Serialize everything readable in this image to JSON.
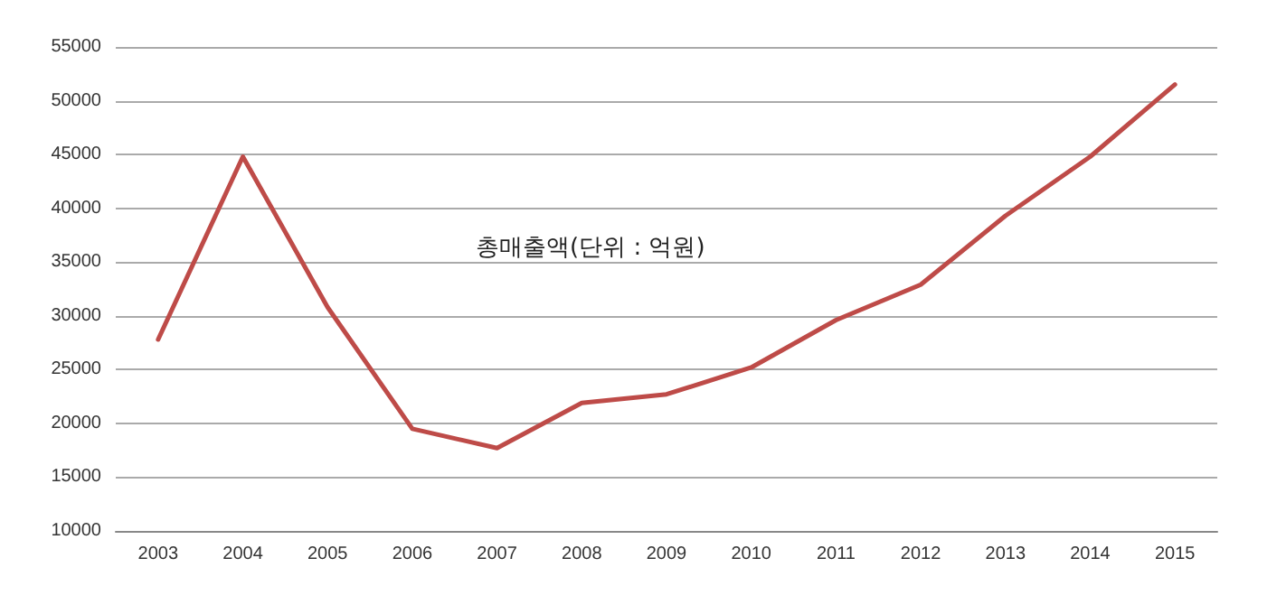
{
  "chart_data": {
    "type": "line",
    "title": "총매출액(단위 : 억원)",
    "categories": [
      "2003",
      "2004",
      "2005",
      "2006",
      "2007",
      "2008",
      "2009",
      "2010",
      "2011",
      "2012",
      "2013",
      "2014",
      "2015"
    ],
    "series": [
      {
        "color": "#be4b48",
        "values": [
          27800,
          44800,
          30800,
          19500,
          17700,
          21900,
          22700,
          25200,
          29600,
          32900,
          39300,
          44800,
          51500
        ]
      }
    ],
    "ylim": [
      10000,
      55000
    ],
    "yticks": [
      10000,
      15000,
      20000,
      25000,
      30000,
      35000,
      40000,
      45000,
      50000,
      55000
    ],
    "grid": "y",
    "marker": "none",
    "line_style": "solid"
  }
}
